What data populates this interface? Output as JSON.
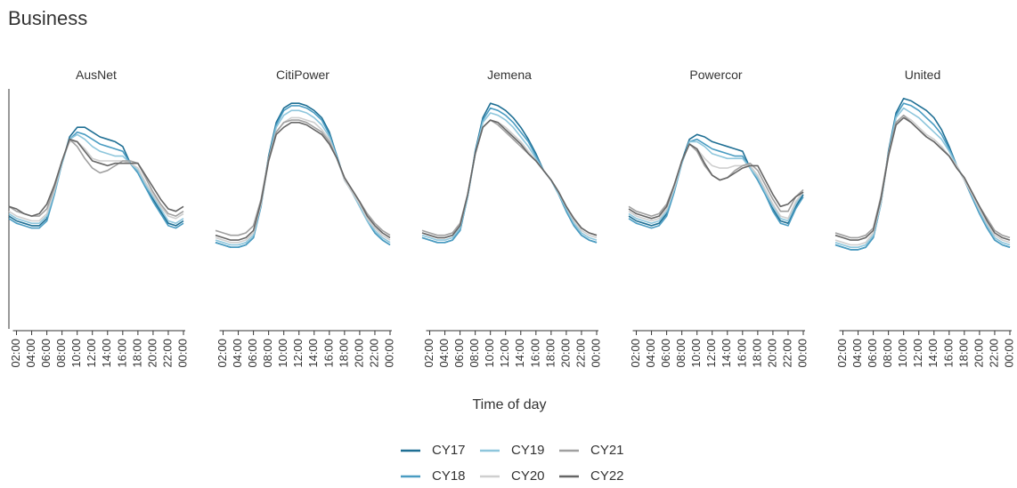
{
  "title": "Business",
  "x_label": "Time of day",
  "chart_data": [
    {
      "type": "line",
      "title": "AusNet",
      "categories": [
        null,
        "02:00",
        null,
        "04:00",
        null,
        "06:00",
        null,
        "08:00",
        null,
        "10:00",
        null,
        "12:00",
        null,
        "14:00",
        null,
        "16:00",
        null,
        "18:00",
        null,
        "20:00",
        null,
        "22:00",
        null,
        "00:00"
      ],
      "ylim": [
        0,
        100
      ],
      "series": [
        {
          "name": "CY17",
          "color": "#1f6f94",
          "values": [
            47,
            45,
            44,
            43,
            43,
            46,
            57,
            69,
            80,
            84,
            84,
            82,
            80,
            79,
            78,
            76,
            69,
            65,
            59,
            54,
            49,
            44,
            43,
            45
          ]
        },
        {
          "name": "CY18",
          "color": "#4a9cc2",
          "values": [
            46,
            44,
            43,
            42,
            42,
            45,
            56,
            69,
            79,
            82,
            81,
            79,
            77,
            76,
            75,
            74,
            69,
            65,
            59,
            53,
            48,
            43,
            42,
            44
          ]
        },
        {
          "name": "CY19",
          "color": "#8ec6dc",
          "values": [
            48,
            46,
            45,
            44,
            44,
            47,
            57,
            69,
            79,
            81,
            79,
            76,
            74,
            73,
            72,
            72,
            69,
            66,
            60,
            55,
            50,
            45,
            44,
            46
          ]
        },
        {
          "name": "CY20",
          "color": "#cfcfcf",
          "values": [
            49,
            47,
            46,
            45,
            45,
            48,
            58,
            70,
            78,
            78,
            75,
            71,
            70,
            70,
            70,
            70,
            69,
            67,
            61,
            56,
            51,
            47,
            46,
            48
          ]
        },
        {
          "name": "CY21",
          "color": "#a0a0a0",
          "values": [
            51,
            49,
            48,
            47,
            47,
            50,
            59,
            70,
            79,
            76,
            71,
            67,
            65,
            66,
            68,
            70,
            70,
            69,
            63,
            57,
            52,
            48,
            47,
            49
          ]
        },
        {
          "name": "CY22",
          "color": "#666666",
          "values": [
            51,
            50,
            48,
            47,
            48,
            52,
            60,
            70,
            79,
            78,
            74,
            70,
            69,
            68,
            69,
            69,
            69,
            69,
            64,
            59,
            54,
            50,
            49,
            51
          ]
        }
      ]
    },
    {
      "type": "line",
      "title": "CitiPower",
      "categories": [
        null,
        "02:00",
        null,
        "04:00",
        null,
        "06:00",
        null,
        "08:00",
        null,
        "10:00",
        null,
        "12:00",
        null,
        "14:00",
        null,
        "16:00",
        null,
        "18:00",
        null,
        "20:00",
        null,
        "22:00",
        null,
        "00:00"
      ],
      "ylim": [
        0,
        100
      ],
      "series": [
        {
          "name": "CY17",
          "color": "#1f6f94",
          "values": [
            36,
            35,
            34,
            34,
            35,
            38,
            52,
            72,
            86,
            92,
            94,
            94,
            93,
            91,
            88,
            82,
            72,
            62,
            57,
            51,
            45,
            40,
            37,
            35
          ]
        },
        {
          "name": "CY18",
          "color": "#4a9cc2",
          "values": [
            36,
            35,
            34,
            34,
            35,
            38,
            51,
            71,
            85,
            91,
            93,
            93,
            92,
            90,
            87,
            81,
            72,
            62,
            57,
            51,
            45,
            40,
            37,
            35
          ]
        },
        {
          "name": "CY19",
          "color": "#8ec6dc",
          "values": [
            37,
            36,
            35,
            35,
            36,
            39,
            52,
            71,
            84,
            89,
            91,
            91,
            90,
            88,
            85,
            80,
            71,
            62,
            57,
            51,
            45,
            41,
            38,
            36
          ]
        },
        {
          "name": "CY20",
          "color": "#cfcfcf",
          "values": [
            38,
            37,
            36,
            36,
            37,
            40,
            52,
            70,
            82,
            86,
            88,
            88,
            87,
            86,
            83,
            79,
            71,
            62,
            57,
            52,
            46,
            42,
            39,
            37
          ]
        },
        {
          "name": "CY21",
          "color": "#a0a0a0",
          "values": [
            41,
            40,
            39,
            39,
            40,
            43,
            54,
            71,
            82,
            86,
            87,
            87,
            86,
            84,
            82,
            78,
            71,
            63,
            58,
            53,
            48,
            44,
            41,
            39
          ]
        },
        {
          "name": "CY22",
          "color": "#666666",
          "values": [
            39,
            38,
            37,
            37,
            38,
            41,
            53,
            70,
            81,
            84,
            86,
            86,
            85,
            83,
            81,
            77,
            71,
            63,
            58,
            53,
            47,
            43,
            40,
            38
          ]
        }
      ]
    },
    {
      "type": "line",
      "title": "Jemena",
      "categories": [
        null,
        "02:00",
        null,
        "04:00",
        null,
        "06:00",
        null,
        "08:00",
        null,
        "10:00",
        null,
        "12:00",
        null,
        "14:00",
        null,
        "16:00",
        null,
        "18:00",
        null,
        "20:00",
        null,
        "22:00",
        null,
        "00:00"
      ],
      "ylim": [
        0,
        100
      ],
      "series": [
        {
          "name": "CY17",
          "color": "#1f6f94",
          "values": [
            38,
            37,
            36,
            36,
            37,
            41,
            55,
            74,
            88,
            94,
            93,
            91,
            88,
            84,
            79,
            73,
            66,
            62,
            56,
            49,
            43,
            39,
            37,
            36
          ]
        },
        {
          "name": "CY18",
          "color": "#4a9cc2",
          "values": [
            38,
            37,
            36,
            36,
            37,
            41,
            55,
            73,
            87,
            92,
            91,
            89,
            86,
            82,
            78,
            72,
            66,
            62,
            56,
            49,
            43,
            39,
            37,
            36
          ]
        },
        {
          "name": "CY19",
          "color": "#8ec6dc",
          "values": [
            39,
            38,
            37,
            37,
            38,
            42,
            55,
            73,
            86,
            90,
            89,
            87,
            84,
            80,
            76,
            71,
            66,
            62,
            56,
            50,
            44,
            40,
            38,
            37
          ]
        },
        {
          "name": "CY20",
          "color": "#cfcfcf",
          "values": [
            40,
            39,
            38,
            38,
            39,
            43,
            56,
            73,
            84,
            87,
            86,
            84,
            81,
            78,
            74,
            70,
            66,
            62,
            57,
            51,
            45,
            41,
            39,
            38
          ]
        },
        {
          "name": "CY21",
          "color": "#a0a0a0",
          "values": [
            41,
            40,
            39,
            39,
            40,
            44,
            56,
            73,
            84,
            87,
            85,
            82,
            79,
            76,
            73,
            70,
            66,
            62,
            57,
            51,
            46,
            42,
            40,
            39
          ]
        },
        {
          "name": "CY22",
          "color": "#666666",
          "values": [
            40,
            39,
            38,
            38,
            39,
            43,
            56,
            73,
            84,
            87,
            86,
            83,
            80,
            77,
            73,
            70,
            66,
            62,
            57,
            51,
            46,
            42,
            40,
            39
          ]
        }
      ]
    },
    {
      "type": "line",
      "title": "Powercor",
      "categories": [
        null,
        "02:00",
        null,
        "04:00",
        null,
        "06:00",
        null,
        "08:00",
        null,
        "10:00",
        null,
        "12:00",
        null,
        "14:00",
        null,
        "16:00",
        null,
        "18:00",
        null,
        "20:00",
        null,
        "22:00",
        null,
        "00:00"
      ],
      "ylim": [
        0,
        100
      ],
      "series": [
        {
          "name": "CY17",
          "color": "#1f6f94",
          "values": [
            47,
            45,
            44,
            43,
            44,
            48,
            58,
            70,
            79,
            81,
            80,
            78,
            77,
            76,
            75,
            74,
            67,
            62,
            56,
            50,
            45,
            44,
            51,
            56
          ]
        },
        {
          "name": "CY18",
          "color": "#4a9cc2",
          "values": [
            46,
            44,
            43,
            42,
            43,
            47,
            57,
            69,
            78,
            79,
            77,
            75,
            74,
            73,
            72,
            72,
            67,
            62,
            56,
            49,
            44,
            43,
            50,
            55
          ]
        },
        {
          "name": "CY19",
          "color": "#8ec6dc",
          "values": [
            48,
            46,
            45,
            44,
            45,
            49,
            58,
            69,
            78,
            78,
            76,
            73,
            72,
            71,
            71,
            71,
            67,
            63,
            57,
            51,
            46,
            45,
            52,
            57
          ]
        },
        {
          "name": "CY20",
          "color": "#cfcfcf",
          "values": [
            49,
            47,
            46,
            45,
            46,
            50,
            59,
            70,
            77,
            75,
            71,
            68,
            67,
            67,
            68,
            68,
            68,
            64,
            58,
            52,
            47,
            46,
            53,
            57
          ]
        },
        {
          "name": "CY21",
          "color": "#a0a0a0",
          "values": [
            51,
            49,
            48,
            47,
            48,
            52,
            60,
            70,
            77,
            74,
            68,
            64,
            62,
            63,
            66,
            68,
            69,
            66,
            60,
            54,
            49,
            49,
            55,
            58
          ]
        },
        {
          "name": "CY22",
          "color": "#666666",
          "values": [
            50,
            48,
            47,
            46,
            47,
            51,
            60,
            70,
            77,
            75,
            69,
            64,
            62,
            63,
            65,
            67,
            68,
            68,
            62,
            56,
            51,
            52,
            55,
            57
          ]
        }
      ]
    },
    {
      "type": "line",
      "title": "United",
      "categories": [
        null,
        "02:00",
        null,
        "04:00",
        null,
        "06:00",
        null,
        "08:00",
        null,
        "10:00",
        null,
        "12:00",
        null,
        "14:00",
        null,
        "16:00",
        null,
        "18:00",
        null,
        "20:00",
        null,
        "22:00",
        null,
        "00:00"
      ],
      "ylim": [
        0,
        100
      ],
      "series": [
        {
          "name": "CY17",
          "color": "#1f6f94",
          "values": [
            35,
            34,
            33,
            33,
            34,
            38,
            52,
            74,
            90,
            96,
            95,
            93,
            91,
            88,
            83,
            76,
            68,
            62,
            55,
            48,
            42,
            37,
            35,
            34
          ]
        },
        {
          "name": "CY18",
          "color": "#4a9cc2",
          "values": [
            35,
            34,
            33,
            33,
            34,
            38,
            52,
            73,
            89,
            94,
            93,
            91,
            88,
            85,
            81,
            75,
            68,
            62,
            55,
            48,
            42,
            37,
            35,
            34
          ]
        },
        {
          "name": "CY19",
          "color": "#8ec6dc",
          "values": [
            36,
            35,
            34,
            34,
            35,
            39,
            52,
            73,
            88,
            92,
            90,
            88,
            85,
            82,
            79,
            74,
            68,
            62,
            56,
            49,
            43,
            38,
            36,
            35
          ]
        },
        {
          "name": "CY20",
          "color": "#cfcfcf",
          "values": [
            37,
            36,
            35,
            35,
            36,
            40,
            53,
            72,
            86,
            89,
            87,
            84,
            81,
            79,
            76,
            72,
            68,
            62,
            56,
            50,
            44,
            39,
            37,
            36
          ]
        },
        {
          "name": "CY21",
          "color": "#a0a0a0",
          "values": [
            40,
            39,
            38,
            38,
            39,
            42,
            55,
            73,
            86,
            89,
            86,
            83,
            80,
            78,
            75,
            72,
            67,
            63,
            57,
            51,
            46,
            41,
            39,
            38
          ]
        },
        {
          "name": "CY22",
          "color": "#666666",
          "values": [
            39,
            38,
            37,
            37,
            38,
            41,
            54,
            72,
            85,
            88,
            86,
            83,
            80,
            78,
            75,
            72,
            67,
            63,
            57,
            51,
            45,
            40,
            38,
            37
          ]
        }
      ]
    }
  ]
}
